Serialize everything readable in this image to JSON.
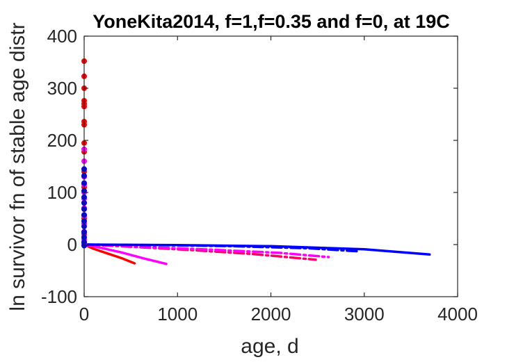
{
  "chart_data": {
    "type": "line",
    "title": "YoneKita2014, f=1,f=0.35 and f=0, at 19C",
    "xlabel": "age, d",
    "ylabel": "ln survivor fn of stable age distr",
    "xlim": [
      0,
      4000
    ],
    "ylim": [
      -100,
      400
    ],
    "xticks": [
      0,
      1000,
      2000,
      3000,
      4000
    ],
    "yticks": [
      -100,
      0,
      100,
      200,
      300,
      400
    ],
    "x_tick_labels": [
      "0",
      "1000",
      "2000",
      "3000",
      "4000"
    ],
    "y_tick_labels": [
      "-100",
      "0",
      "100",
      "200",
      "300",
      "400"
    ],
    "grid": false,
    "colors": {
      "f1": "#ff0000",
      "f035": "#ff00ff",
      "f0": "#0000ff",
      "mixed": "#ff0066"
    },
    "series": [
      {
        "color": "#ff0000",
        "style": "solid",
        "x": [
          0,
          100,
          250,
          400,
          540
        ],
        "y": [
          0,
          -8,
          -17,
          -26,
          -36
        ]
      },
      {
        "color": "#ff00ff",
        "style": "solid",
        "x": [
          0,
          150,
          400,
          650,
          880
        ],
        "y": [
          0,
          -5,
          -15,
          -27,
          -37
        ]
      },
      {
        "color": "#ff0066",
        "style": "dashdot",
        "x": [
          0,
          600,
          1200,
          1800,
          2480
        ],
        "y": [
          0,
          -5,
          -11,
          -18,
          -29
        ]
      },
      {
        "color": "#ff00ff",
        "style": "dashdot",
        "x": [
          0,
          700,
          1400,
          2100,
          2620
        ],
        "y": [
          0,
          -5,
          -10,
          -16,
          -24
        ]
      },
      {
        "color": "#0000ff",
        "style": "dashdot",
        "x": [
          0,
          800,
          1600,
          2400,
          2950
        ],
        "y": [
          0,
          -1,
          -3,
          -7,
          -13
        ]
      },
      {
        "color": "#0000ff",
        "style": "solid",
        "x": [
          0,
          1000,
          2000,
          3000,
          3700
        ],
        "y": [
          0,
          -1,
          -3,
          -9,
          -19
        ]
      }
    ],
    "scatter": [
      {
        "color": "#ff0000",
        "x": [
          0,
          0,
          0,
          0,
          0,
          0,
          0,
          0,
          0,
          0,
          0,
          0,
          0,
          0,
          0,
          0
        ],
        "y": [
          352,
          323,
          300,
          276,
          270,
          265,
          236,
          230,
          195,
          178,
          140,
          110,
          80,
          50,
          20,
          3
        ]
      },
      {
        "color": "#ff00ff",
        "x": [
          0,
          0,
          0,
          0,
          0,
          0,
          0,
          0,
          0,
          0,
          0,
          0
        ],
        "y": [
          183,
          160,
          130,
          115,
          100,
          88,
          70,
          55,
          40,
          25,
          10,
          0
        ]
      },
      {
        "color": "#0000ff",
        "x": [
          0,
          0,
          0,
          0,
          0,
          0,
          0,
          0,
          0,
          0,
          0,
          0,
          0,
          0
        ],
        "y": [
          145,
          132,
          118,
          103,
          91,
          80,
          68,
          57,
          45,
          35,
          24,
          14,
          5,
          -2
        ]
      }
    ]
  }
}
